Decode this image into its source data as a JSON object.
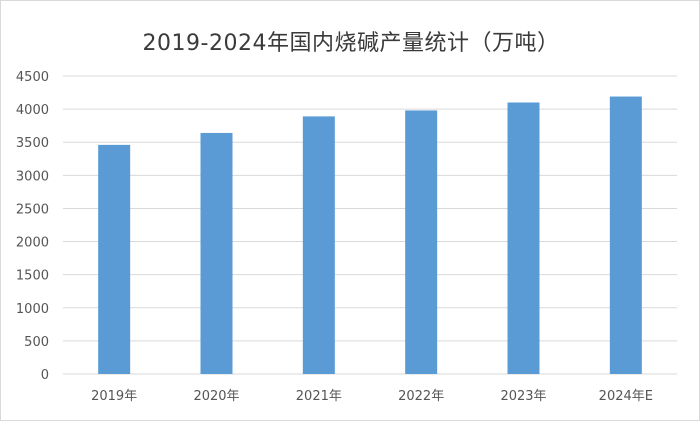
{
  "chart_data": {
    "type": "bar",
    "title": "2019-2024年国内烧碱产量统计（万吨）",
    "categories": [
      "2019年",
      "2020年",
      "2021年",
      "2022年",
      "2023年",
      "2024年E"
    ],
    "values": [
      3460,
      3640,
      3890,
      3980,
      4100,
      4190
    ],
    "ylim": [
      0,
      4500
    ],
    "yticks": [
      0,
      500,
      1000,
      1500,
      2000,
      2500,
      3000,
      3500,
      4000,
      4500
    ],
    "grid": true,
    "legend": "none",
    "bar_color": "#5b9bd5",
    "grid_color": "#d9d9d9"
  }
}
